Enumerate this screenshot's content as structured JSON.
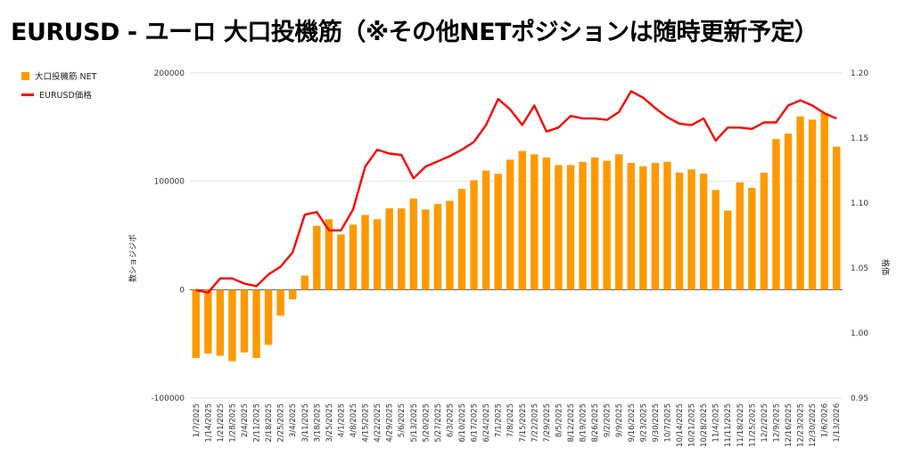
{
  "chart_data": {
    "type": "bar",
    "title": "EURUSD - ユーロ 大口投機筋（※その他NETポジションは随時更新予定）",
    "ylabel": "数ショジジポ",
    "y2label": "格価",
    "ylim": [
      -100000,
      200000
    ],
    "y2lim": [
      0.95,
      1.2
    ],
    "yticks": [
      "-100000",
      "0",
      "100000",
      "200000"
    ],
    "y2ticks": [
      "0.95",
      "1.00",
      "1.05",
      "1.10",
      "1.15",
      "1.20"
    ],
    "colors": {
      "bar": "#ff9900",
      "line": "#ff0000",
      "grid": "#e6e6e6",
      "zero": "#555555"
    },
    "categories": [
      "1/7/2025",
      "1/14/2025",
      "1/21/2025",
      "1/28/2025",
      "2/4/2025",
      "2/11/2025",
      "2/18/2025",
      "2/25/2025",
      "3/4/2025",
      "3/11/2025",
      "3/18/2025",
      "3/25/2025",
      "4/1/2025",
      "4/8/2025",
      "4/15/2025",
      "4/22/2025",
      "4/29/2025",
      "5/6/2025",
      "5/13/2025",
      "5/20/2025",
      "5/27/2025",
      "6/3/2025",
      "6/10/2025",
      "6/17/2025",
      "6/24/2025",
      "7/1/2025",
      "7/8/2025",
      "7/15/2025",
      "7/22/2025",
      "7/29/2025",
      "8/5/2025",
      "8/12/2025",
      "8/19/2025",
      "8/26/2025",
      "9/2/2025",
      "9/9/2025",
      "9/16/2025",
      "9/23/2025",
      "9/30/2025",
      "10/7/2025",
      "10/14/2025",
      "10/21/2025",
      "10/28/2025",
      "11/4/2025",
      "11/11/2025",
      "11/18/2025",
      "11/25/2025",
      "12/2/2025",
      "12/9/2025",
      "12/16/2025",
      "12/23/2025",
      "12/30/2025",
      "1/6/2026",
      "1/13/2026"
    ],
    "tick_labels": [
      "1/7/2025",
      "1/14/2025",
      "1/21/2025",
      "1/28/2025",
      "2/4/2025",
      "2/11/2025",
      "2/18/2025",
      "2/25/2025",
      "3/4/2025",
      "3/11/2025",
      "3/18/2025",
      "3/25/2025",
      "4/1/2025",
      "4/8/2025",
      "4/15/2025",
      "4/22/2025",
      "4/29/2025",
      "5/6/2025",
      "5/13/2025",
      "5/20/2025",
      "5/27/2025",
      "6/3/2025",
      "6/10/2025",
      "6/17/2025",
      "6/24/2025",
      "7/1/2025",
      "7/8/2025",
      "7/15/2025",
      "7/22/2025",
      "7/29/2025",
      "8/5/2025",
      "8/12/2025",
      "8/19/2025",
      "8/26/2025",
      "9/2/2025",
      "9/9/2025",
      "9/16/2025",
      "9/23/2025",
      "9/30/2025",
      "10/7/2025",
      "10/14/2025",
      "10/21/2025",
      "10/28/2025",
      "11/4/2025",
      "11/11/2025",
      "11/18/2025",
      "11/25/2025",
      "12/2/2025",
      "12/9/2025",
      "12/16/2025",
      "12/23/2025",
      "12/30/2025",
      "1/6/2026",
      "1/13/2026"
    ],
    "series": [
      {
        "name": "大口投機筋  NET",
        "type": "bar",
        "axis": "left",
        "values": [
          -63000,
          -59000,
          -61000,
          -66000,
          -58000,
          -63000,
          -51000,
          -24000,
          -9000,
          13000,
          59000,
          65000,
          51000,
          60000,
          69000,
          65000,
          75000,
          75000,
          84000,
          74000,
          79000,
          82000,
          93000,
          101000,
          110000,
          107000,
          120000,
          128000,
          125000,
          122000,
          115000,
          115000,
          118000,
          122000,
          119000,
          125000,
          117000,
          114000,
          117000,
          118000,
          108000,
          111000,
          107000,
          92000,
          73000,
          99000,
          94000,
          108000,
          139000,
          144000,
          160000,
          157000,
          163000,
          132000
        ]
      },
      {
        "name": "EURUSD価格",
        "type": "line",
        "axis": "right",
        "values": [
          1.033,
          1.031,
          1.042,
          1.042,
          1.038,
          1.036,
          1.045,
          1.051,
          1.062,
          1.091,
          1.093,
          1.079,
          1.079,
          1.095,
          1.128,
          1.141,
          1.138,
          1.137,
          1.119,
          1.128,
          1.132,
          1.136,
          1.141,
          1.147,
          1.16,
          1.18,
          1.172,
          1.16,
          1.175,
          1.155,
          1.158,
          1.167,
          1.165,
          1.165,
          1.164,
          1.17,
          1.186,
          1.181,
          1.173,
          1.166,
          1.161,
          1.16,
          1.165,
          1.148,
          1.158,
          1.158,
          1.157,
          1.162,
          1.162,
          1.175,
          1.179,
          1.175,
          1.169,
          1.165
        ]
      }
    ]
  }
}
